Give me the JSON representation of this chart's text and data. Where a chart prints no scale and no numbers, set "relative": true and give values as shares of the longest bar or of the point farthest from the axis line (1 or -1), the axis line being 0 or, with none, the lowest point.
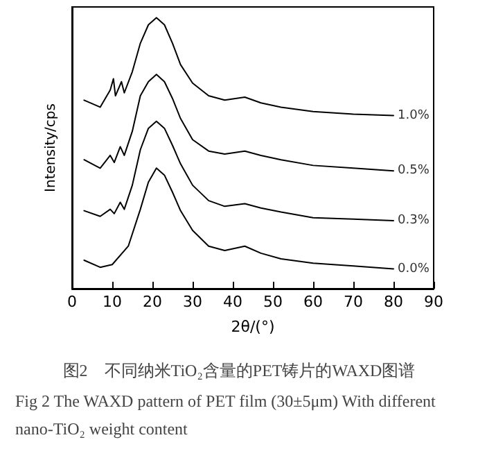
{
  "chart_data": {
    "type": "line",
    "title": "图2　不同纳米TiO₂含量的PET铸片的WAXD图谱",
    "subtitle": "Fig 2 The WAXD pattern of PET film (30±5μm) With different nano-TiO₂ weight content",
    "xlabel": "2θ/(°)",
    "ylabel": "Intensity/cps",
    "relative": true,
    "xlim": [
      0,
      90
    ],
    "xticks": [
      0,
      10,
      20,
      30,
      40,
      50,
      60,
      70,
      80,
      90
    ],
    "legend": false,
    "grid": false,
    "marker": "none",
    "line_style": "solid",
    "series": [
      {
        "name": "1.0%",
        "color": "#000000",
        "x": [
          3,
          7,
          9.5,
          10.3,
          10.8,
          12.3,
          13,
          15,
          17,
          19,
          21,
          23,
          25,
          27,
          30,
          34,
          38,
          43,
          47,
          52,
          60,
          70,
          80
        ],
        "values": [
          0.696,
          0.67,
          0.733,
          0.775,
          0.712,
          0.764,
          0.723,
          0.801,
          0.906,
          0.974,
          1.0,
          0.974,
          0.906,
          0.827,
          0.759,
          0.712,
          0.696,
          0.707,
          0.686,
          0.67,
          0.654,
          0.644,
          0.639
        ]
      },
      {
        "name": "0.5%",
        "color": "#000000",
        "x": [
          3,
          7,
          9.5,
          10.5,
          12,
          13,
          15,
          17,
          19,
          21,
          23,
          25,
          27,
          30,
          34,
          38,
          43,
          47,
          52,
          60,
          70,
          80
        ],
        "values": [
          0.476,
          0.445,
          0.492,
          0.466,
          0.524,
          0.492,
          0.581,
          0.712,
          0.764,
          0.791,
          0.764,
          0.702,
          0.628,
          0.55,
          0.508,
          0.497,
          0.508,
          0.492,
          0.476,
          0.455,
          0.445,
          0.435
        ]
      },
      {
        "name": "0.3%",
        "color": "#000000",
        "x": [
          3,
          7,
          9.5,
          10.5,
          12,
          13,
          15,
          17,
          19,
          21,
          23,
          25,
          27,
          30,
          34,
          38,
          43,
          47,
          52,
          60,
          70,
          80
        ],
        "values": [
          0.288,
          0.267,
          0.293,
          0.277,
          0.319,
          0.293,
          0.382,
          0.513,
          0.592,
          0.618,
          0.592,
          0.529,
          0.461,
          0.382,
          0.325,
          0.304,
          0.314,
          0.298,
          0.283,
          0.262,
          0.257,
          0.251
        ]
      },
      {
        "name": "0.0%",
        "color": "#000000",
        "x": [
          3,
          7,
          10,
          14,
          17,
          19,
          21,
          23,
          25,
          27,
          30,
          34,
          38,
          43,
          47,
          52,
          60,
          70,
          80
        ],
        "values": [
          0.105,
          0.079,
          0.089,
          0.157,
          0.293,
          0.393,
          0.445,
          0.419,
          0.356,
          0.288,
          0.215,
          0.157,
          0.141,
          0.157,
          0.131,
          0.11,
          0.094,
          0.084,
          0.073
        ]
      }
    ]
  }
}
